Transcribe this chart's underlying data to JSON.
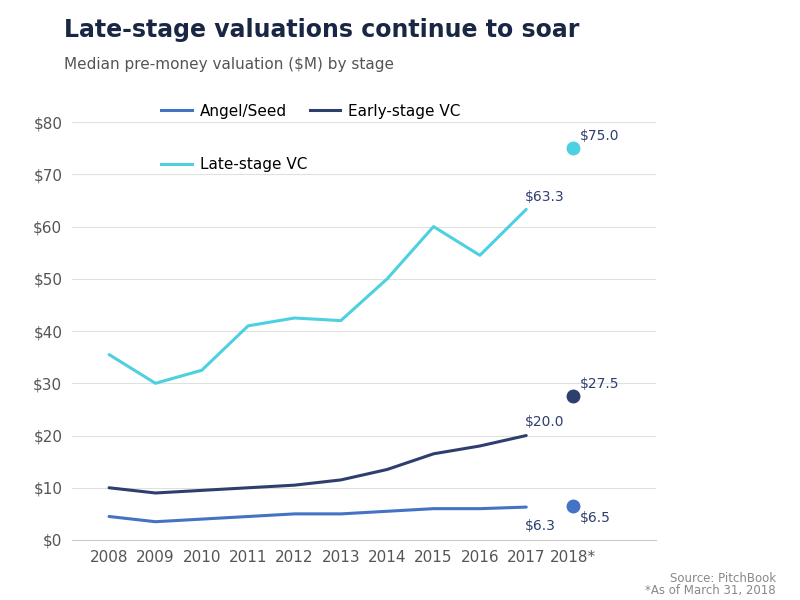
{
  "title": "Late-stage valuations continue to soar",
  "subtitle": "Median pre-money valuation ($M) by stage",
  "years": [
    2008,
    2009,
    2010,
    2011,
    2012,
    2013,
    2014,
    2015,
    2016,
    2017
  ],
  "angel_seed": [
    4.5,
    3.5,
    4.0,
    4.5,
    5.0,
    5.0,
    5.5,
    6.0,
    6.0,
    6.3
  ],
  "early_stage_vc": [
    10.0,
    9.0,
    9.5,
    10.0,
    10.5,
    11.5,
    13.5,
    16.5,
    18.0,
    20.0
  ],
  "late_stage_vc": [
    35.5,
    30.0,
    32.5,
    41.0,
    42.5,
    42.0,
    50.0,
    60.0,
    54.5,
    63.3
  ],
  "angel_2018": 6.5,
  "early_2018": 27.5,
  "late_2018": 75.0,
  "angel_color": "#4472C4",
  "early_color": "#2E3F6E",
  "late_color": "#4DD0E1",
  "label_2017_angel": "$6.3",
  "label_2017_early": "$20.0",
  "label_2017_late": "$63.3",
  "label_2018_angel": "$6.5",
  "label_2018_early": "$27.5",
  "label_2018_late": "$75.0",
  "source_text": "Source: PitchBook",
  "footnote_text": "*As of March 31, 2018",
  "ylim": [
    0,
    85
  ],
  "yticks": [
    0,
    10,
    20,
    30,
    40,
    50,
    60,
    70,
    80
  ],
  "background_color": "#ffffff",
  "title_fontsize": 17,
  "subtitle_fontsize": 11,
  "tick_fontsize": 11,
  "legend_fontsize": 11,
  "text_color": "#2E3F6E"
}
